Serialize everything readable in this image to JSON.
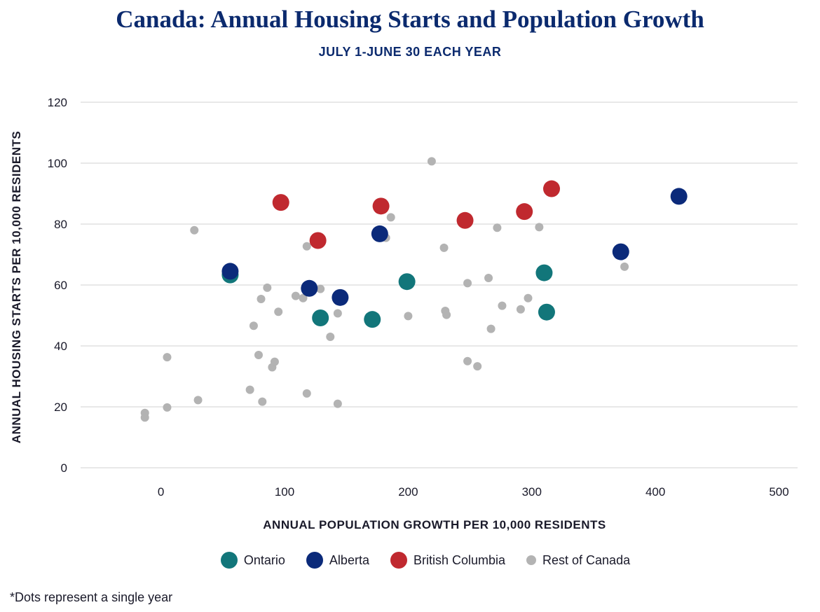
{
  "title": "Canada: Annual Housing Starts and Population Growth",
  "subtitle": "JULY 1-JUNE 30 EACH YEAR",
  "footnote": "*Dots represent a single year",
  "chart_data": {
    "type": "scatter",
    "xlabel": "ANNUAL POPULATION GROWTH PER 10,000 RESIDENTS",
    "ylabel": "ANNUAL HOUSING STARTS PER 10,000 RESIDENTS",
    "xlim": [
      -65,
      515
    ],
    "ylim": [
      0,
      120
    ],
    "xticks": [
      0,
      100,
      200,
      300,
      400,
      500
    ],
    "yticks": [
      0,
      20,
      40,
      60,
      80,
      100,
      120
    ],
    "grid": "horizontal",
    "legend_position": "bottom",
    "series": [
      {
        "name": "Rest of Canada",
        "color": "#b3b3b3",
        "marker": "small",
        "points": [
          [
            -13,
            18
          ],
          [
            -13,
            16.5
          ],
          [
            5,
            36.3
          ],
          [
            5,
            19.8
          ],
          [
            27,
            78
          ],
          [
            30,
            22.2
          ],
          [
            72,
            25.6
          ],
          [
            75,
            46.6
          ],
          [
            79,
            37
          ],
          [
            81,
            55.4
          ],
          [
            82,
            21.7
          ],
          [
            86,
            59.1
          ],
          [
            90,
            33
          ],
          [
            92,
            34.8
          ],
          [
            95,
            51.2
          ],
          [
            109,
            56.4
          ],
          [
            115,
            55.7
          ],
          [
            118,
            24.4
          ],
          [
            118,
            72.7
          ],
          [
            129,
            58.7
          ],
          [
            137,
            43
          ],
          [
            143,
            50.7
          ],
          [
            143,
            21
          ],
          [
            182,
            75.5
          ],
          [
            186,
            82.2
          ],
          [
            200,
            49.8
          ],
          [
            219,
            100.6
          ],
          [
            229,
            72.2
          ],
          [
            230,
            51.5
          ],
          [
            231,
            50.2
          ],
          [
            248,
            60.6
          ],
          [
            248,
            35
          ],
          [
            256,
            33.3
          ],
          [
            265,
            62.3
          ],
          [
            267,
            45.6
          ],
          [
            272,
            78.8
          ],
          [
            276,
            53.2
          ],
          [
            291,
            52
          ],
          [
            297,
            55.7
          ],
          [
            306,
            79
          ],
          [
            375,
            66
          ]
        ]
      },
      {
        "name": "Ontario",
        "color": "#12767a",
        "marker": "big",
        "points": [
          [
            56,
            63.3
          ],
          [
            129,
            49.2
          ],
          [
            171,
            48.7
          ],
          [
            199,
            61.1
          ],
          [
            310,
            64
          ],
          [
            312,
            51.1
          ]
        ]
      },
      {
        "name": "Alberta",
        "color": "#0b2a7a",
        "marker": "big",
        "points": [
          [
            56,
            64.5
          ],
          [
            120,
            58.9
          ],
          [
            145,
            55.9
          ],
          [
            177,
            76.8
          ],
          [
            372,
            70.9
          ],
          [
            419,
            89.1
          ]
        ]
      },
      {
        "name": "British Columbia",
        "color": "#c0292f",
        "marker": "big",
        "points": [
          [
            97,
            87.1
          ],
          [
            127,
            74.6
          ],
          [
            178,
            85.9
          ],
          [
            246,
            81.2
          ],
          [
            294,
            84.1
          ],
          [
            316,
            91.6
          ]
        ]
      }
    ]
  }
}
